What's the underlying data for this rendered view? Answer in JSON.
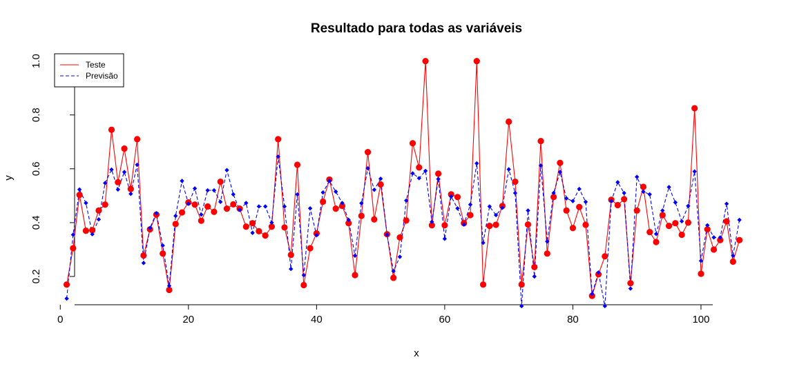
{
  "chart_data": {
    "type": "line",
    "title": "Resultado para todas as variáveis",
    "xlabel": "x",
    "ylabel": "y",
    "xlim": [
      -1,
      111
    ],
    "ylim": [
      0.095,
      1.04
    ],
    "xticks": [
      0,
      20,
      40,
      60,
      80,
      100
    ],
    "yticks": [
      0.2,
      0.4,
      0.6,
      0.8,
      1.0
    ],
    "xtick_labels": [
      "0",
      "20",
      "40",
      "60",
      "80",
      "100"
    ],
    "ytick_labels": [
      "0.2",
      "0.4",
      "0.6",
      "0.8",
      "1.0"
    ],
    "grid": false,
    "legend_position": "top-left",
    "series": [
      {
        "name": "Teste",
        "color": "#ff0000",
        "line": "solid",
        "marker": "circle",
        "values": [
          0.17,
          0.305,
          0.503,
          0.37,
          0.372,
          0.445,
          0.467,
          0.745,
          0.55,
          0.675,
          0.525,
          0.71,
          0.278,
          0.375,
          0.43,
          0.285,
          0.15,
          0.395,
          0.438,
          0.475,
          0.467,
          0.407,
          0.46,
          0.44,
          0.552,
          0.452,
          0.468,
          0.452,
          0.385,
          0.398,
          0.368,
          0.352,
          0.385,
          0.71,
          0.382,
          0.28,
          0.615,
          0.168,
          0.305,
          0.36,
          0.478,
          0.56,
          0.452,
          0.462,
          0.398,
          0.205,
          0.425,
          0.662,
          0.412,
          0.542,
          0.357,
          0.195,
          0.345,
          0.408,
          0.695,
          0.605,
          1.0,
          0.39,
          0.582,
          0.39,
          0.505,
          0.495,
          0.398,
          0.428,
          1.0,
          0.17,
          0.388,
          0.392,
          0.462,
          0.775,
          0.552,
          0.17,
          0.393,
          0.235,
          0.703,
          0.285,
          0.495,
          0.622,
          0.445,
          0.38,
          0.458,
          0.392,
          0.128,
          0.208,
          0.275,
          0.485,
          0.465,
          0.487,
          0.175,
          0.445,
          0.533,
          0.365,
          0.328,
          0.428,
          0.388,
          0.398,
          0.355,
          0.4,
          0.825,
          0.21,
          0.375,
          0.3,
          0.335,
          0.405,
          0.255,
          0.335
        ]
      },
      {
        "name": "Previsão",
        "color": "#0000ff",
        "line": "dashed",
        "marker": "diamond",
        "values": [
          0.118,
          0.355,
          0.523,
          0.473,
          0.357,
          0.412,
          0.547,
          0.597,
          0.523,
          0.588,
          0.507,
          0.615,
          0.25,
          0.38,
          0.435,
          0.315,
          0.165,
          0.425,
          0.555,
          0.47,
          0.527,
          0.43,
          0.52,
          0.52,
          0.477,
          0.595,
          0.505,
          0.447,
          0.473,
          0.362,
          0.46,
          0.46,
          0.4,
          0.645,
          0.46,
          0.228,
          0.505,
          0.205,
          0.453,
          0.353,
          0.512,
          0.555,
          0.515,
          0.473,
          0.41,
          0.277,
          0.472,
          0.602,
          0.522,
          0.563,
          0.355,
          0.22,
          0.273,
          0.482,
          0.583,
          0.565,
          0.592,
          0.403,
          0.562,
          0.34,
          0.497,
          0.453,
          0.393,
          0.467,
          0.62,
          0.325,
          0.46,
          0.428,
          0.455,
          0.598,
          0.51,
          0.09,
          0.445,
          0.2,
          0.612,
          0.33,
          0.51,
          0.588,
          0.49,
          0.48,
          0.525,
          0.477,
          0.135,
          0.215,
          0.09,
          0.48,
          0.55,
          0.51,
          0.155,
          0.57,
          0.515,
          0.505,
          0.358,
          0.445,
          0.532,
          0.475,
          0.405,
          0.462,
          0.59,
          0.258,
          0.39,
          0.345,
          0.345,
          0.47,
          0.277,
          0.41
        ]
      }
    ]
  }
}
